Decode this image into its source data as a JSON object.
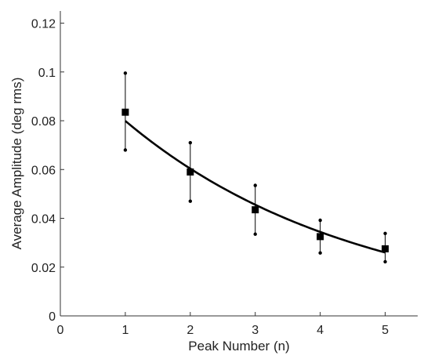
{
  "chart_data": {
    "type": "scatter",
    "title": "",
    "xlabel": "Peak Number (n)",
    "ylabel": "Average Amplitude (deg rms)",
    "xlim": [
      0,
      5.5
    ],
    "ylim": [
      0,
      0.125
    ],
    "x_ticks": [
      0,
      1,
      2,
      3,
      4,
      5
    ],
    "x_tick_labels": [
      "0",
      "1",
      "2",
      "3",
      "4",
      "5"
    ],
    "y_ticks": [
      0,
      0.02,
      0.04,
      0.06,
      0.08,
      0.1,
      0.12
    ],
    "y_tick_labels": [
      "0",
      "0.02",
      "0.04",
      "0.06",
      "0.08",
      "0.1",
      "0.12"
    ],
    "grid": false,
    "legend": "none",
    "series": [
      {
        "x": [
          1,
          2,
          3,
          4,
          5
        ],
        "y": [
          0.0835,
          0.059,
          0.0435,
          0.0325,
          0.0275
        ],
        "error_low": [
          0.068,
          0.047,
          0.0335,
          0.0258,
          0.0222
        ],
        "error_high": [
          0.0995,
          0.071,
          0.0535,
          0.0392,
          0.0338
        ],
        "marker": "square",
        "color": "#000000"
      }
    ],
    "fit_curve": {
      "type": "exponential",
      "x_range": [
        1,
        5
      ],
      "points": [
        [
          1,
          0.0835
        ],
        [
          2,
          0.059
        ],
        [
          3,
          0.0435
        ],
        [
          4,
          0.034
        ],
        [
          5,
          0.027
        ]
      ],
      "color": "#000000"
    },
    "colors": {
      "axis": "#333333",
      "text": "#222222",
      "data": "#000000"
    }
  }
}
